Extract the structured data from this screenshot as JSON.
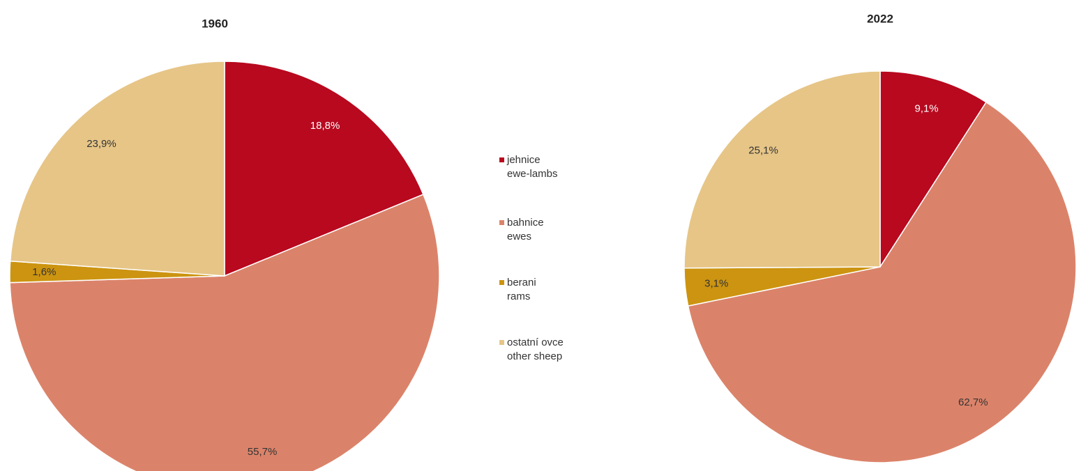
{
  "chart_data": [
    {
      "type": "pie",
      "title": "1960",
      "values": [
        18.8,
        55.7,
        1.6,
        23.9
      ],
      "value_labels": [
        "18,8%",
        "55,7%",
        "1,6%",
        "23,9%"
      ]
    },
    {
      "type": "pie",
      "title": "2022",
      "values": [
        9.1,
        62.7,
        3.1,
        25.1
      ],
      "value_labels": [
        "9,1%",
        "62,7%",
        "3,1%",
        "25,1%"
      ]
    }
  ],
  "legend": {
    "items": [
      [
        "jehnice",
        "ewe-lambs"
      ],
      [
        "bahnice",
        "ewes"
      ],
      [
        "berani",
        "rams"
      ],
      [
        "ostatní ovce",
        "other sheep"
      ]
    ],
    "colors": [
      "#b8091f",
      "#db836a",
      "#cc9410",
      "#e6c587"
    ],
    "label_colors": [
      "#ffffff",
      "#333333",
      "#333333",
      "#333333"
    ]
  }
}
